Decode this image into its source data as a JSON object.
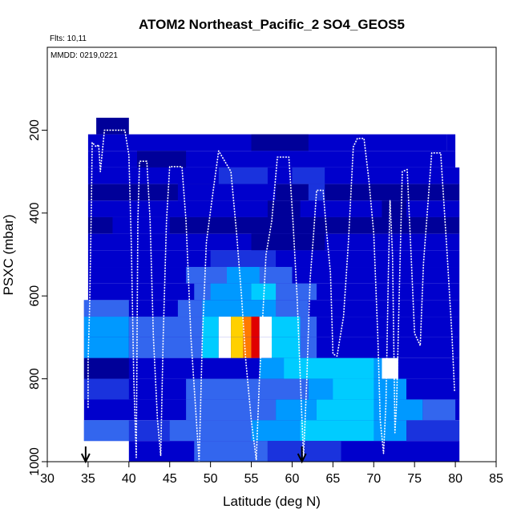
{
  "chart_data": {
    "type": "heatmap",
    "title": "ATOM2 Northeast_Pacific_2 SO4_GEOS5",
    "subtitle_flights": "Flts: 10,11",
    "subtitle_dates": "MMDD: 0219,0221",
    "xlabel": "Latitude (deg N)",
    "ylabel": "PSXC (mbar)",
    "xlim": [
      30,
      85
    ],
    "ylim": [
      1000,
      0
    ],
    "x_ticks": [
      "30",
      "35",
      "40",
      "45",
      "50",
      "55",
      "60",
      "65",
      "70",
      "75",
      "80",
      "85"
    ],
    "y_ticks": [
      "200",
      "400",
      "600",
      "800",
      "1000"
    ],
    "colormap": [
      "#000099",
      "#0000cc",
      "#1a33dd",
      "#3366ee",
      "#0099ff",
      "#00ccff",
      "#ffffff",
      "#ffd000",
      "#ff7a00",
      "#e00000"
    ],
    "arrow_latitudes": [
      34.7,
      61.2
    ],
    "grid": false,
    "legend": "none",
    "heatmap_rows": [
      {
        "p_top": 170,
        "p_bot": 210,
        "cells": [
          {
            "x0": 36,
            "x1": 40,
            "c": 0
          }
        ]
      },
      {
        "p_top": 210,
        "p_bot": 250,
        "cells": [
          {
            "x0": 35,
            "x1": 79,
            "c": 1
          },
          {
            "x0": 55,
            "x1": 62,
            "c": 0
          },
          {
            "x0": 79,
            "x1": 80,
            "c": 1
          }
        ]
      },
      {
        "p_top": 250,
        "p_bot": 290,
        "cells": [
          {
            "x0": 35,
            "x1": 80,
            "c": 1
          },
          {
            "x0": 41,
            "x1": 47,
            "c": 0
          }
        ]
      },
      {
        "p_top": 290,
        "p_bot": 330,
        "cells": [
          {
            "x0": 35,
            "x1": 80.5,
            "c": 1
          },
          {
            "x0": 51,
            "x1": 57,
            "c": 2
          },
          {
            "x0": 60,
            "x1": 64,
            "c": 2
          }
        ]
      },
      {
        "p_top": 330,
        "p_bot": 370,
        "cells": [
          {
            "x0": 35,
            "x1": 80.5,
            "c": 0
          },
          {
            "x0": 46,
            "x1": 58,
            "c": 1
          },
          {
            "x0": 62,
            "x1": 64,
            "c": 2
          }
        ]
      },
      {
        "p_top": 370,
        "p_bot": 410,
        "cells": [
          {
            "x0": 35,
            "x1": 80.5,
            "c": 1
          },
          {
            "x0": 57,
            "x1": 61,
            "c": 0
          },
          {
            "x0": 71,
            "x1": 74,
            "c": 0
          }
        ]
      },
      {
        "p_top": 410,
        "p_bot": 450,
        "cells": [
          {
            "x0": 35,
            "x1": 80.5,
            "c": 0
          },
          {
            "x0": 38,
            "x1": 45,
            "c": 1
          }
        ]
      },
      {
        "p_top": 450,
        "p_bot": 490,
        "cells": [
          {
            "x0": 35,
            "x1": 80.5,
            "c": 1
          },
          {
            "x0": 55,
            "x1": 64,
            "c": 0
          }
        ]
      },
      {
        "p_top": 490,
        "p_bot": 530,
        "cells": [
          {
            "x0": 35,
            "x1": 80.5,
            "c": 1
          },
          {
            "x0": 50,
            "x1": 58,
            "c": 2
          }
        ]
      },
      {
        "p_top": 530,
        "p_bot": 570,
        "cells": [
          {
            "x0": 35,
            "x1": 80.5,
            "c": 1
          },
          {
            "x0": 47,
            "x1": 60,
            "c": 3
          },
          {
            "x0": 52,
            "x1": 56,
            "c": 4
          }
        ]
      },
      {
        "p_top": 570,
        "p_bot": 610,
        "cells": [
          {
            "x0": 35,
            "x1": 80.5,
            "c": 1
          },
          {
            "x0": 48,
            "x1": 63,
            "c": 3
          },
          {
            "x0": 50,
            "x1": 55,
            "c": 4
          },
          {
            "x0": 55,
            "x1": 58,
            "c": 5
          }
        ]
      },
      {
        "p_top": 610,
        "p_bot": 650,
        "cells": [
          {
            "x0": 34.5,
            "x1": 80.5,
            "c": 1
          },
          {
            "x0": 34.5,
            "x1": 40,
            "c": 3
          },
          {
            "x0": 46,
            "x1": 62,
            "c": 3
          },
          {
            "x0": 49,
            "x1": 58,
            "c": 4
          }
        ]
      },
      {
        "p_top": 650,
        "p_bot": 700,
        "cells": [
          {
            "x0": 34.5,
            "x1": 80.5,
            "c": 1
          },
          {
            "x0": 34.5,
            "x1": 40,
            "c": 4
          },
          {
            "x0": 40,
            "x1": 49,
            "c": 3
          },
          {
            "x0": 49,
            "x1": 51,
            "c": 5
          },
          {
            "x0": 51,
            "x1": 52.5,
            "c": 6
          },
          {
            "x0": 52.5,
            "x1": 54,
            "c": 7
          },
          {
            "x0": 54,
            "x1": 55,
            "c": 8
          },
          {
            "x0": 55,
            "x1": 56,
            "c": 9
          },
          {
            "x0": 56,
            "x1": 57.5,
            "c": 6
          },
          {
            "x0": 57.5,
            "x1": 61,
            "c": 5
          },
          {
            "x0": 61,
            "x1": 63,
            "c": 3
          }
        ]
      },
      {
        "p_top": 700,
        "p_bot": 750,
        "cells": [
          {
            "x0": 34.5,
            "x1": 80.5,
            "c": 1
          },
          {
            "x0": 34.5,
            "x1": 40,
            "c": 4
          },
          {
            "x0": 40,
            "x1": 49,
            "c": 3
          },
          {
            "x0": 49,
            "x1": 51,
            "c": 5
          },
          {
            "x0": 51,
            "x1": 52.5,
            "c": 6
          },
          {
            "x0": 52.5,
            "x1": 54,
            "c": 7
          },
          {
            "x0": 54,
            "x1": 55,
            "c": 8
          },
          {
            "x0": 55,
            "x1": 56,
            "c": 9
          },
          {
            "x0": 56,
            "x1": 57.5,
            "c": 6
          },
          {
            "x0": 57.5,
            "x1": 61,
            "c": 5
          },
          {
            "x0": 61,
            "x1": 63,
            "c": 3
          }
        ]
      },
      {
        "p_top": 750,
        "p_bot": 800,
        "cells": [
          {
            "x0": 34.5,
            "x1": 80.5,
            "c": 1
          },
          {
            "x0": 34.5,
            "x1": 40,
            "c": 0
          },
          {
            "x0": 56,
            "x1": 73,
            "c": 4
          },
          {
            "x0": 59,
            "x1": 70,
            "c": 5
          },
          {
            "x0": 71,
            "x1": 73,
            "c": 6
          }
        ]
      },
      {
        "p_top": 800,
        "p_bot": 850,
        "cells": [
          {
            "x0": 34.5,
            "x1": 80.5,
            "c": 1
          },
          {
            "x0": 34.5,
            "x1": 40,
            "c": 2
          },
          {
            "x0": 47,
            "x1": 62,
            "c": 3
          },
          {
            "x0": 62,
            "x1": 74,
            "c": 4
          },
          {
            "x0": 65,
            "x1": 70,
            "c": 5
          }
        ]
      },
      {
        "p_top": 850,
        "p_bot": 900,
        "cells": [
          {
            "x0": 34.5,
            "x1": 80.5,
            "c": 1
          },
          {
            "x0": 47,
            "x1": 58,
            "c": 3
          },
          {
            "x0": 58,
            "x1": 76,
            "c": 4
          },
          {
            "x0": 63,
            "x1": 70,
            "c": 5
          },
          {
            "x0": 76,
            "x1": 80,
            "c": 3
          }
        ]
      },
      {
        "p_top": 900,
        "p_bot": 950,
        "cells": [
          {
            "x0": 34.5,
            "x1": 80.5,
            "c": 2
          },
          {
            "x0": 34.5,
            "x1": 40,
            "c": 3
          },
          {
            "x0": 45,
            "x1": 55,
            "c": 3
          },
          {
            "x0": 55,
            "x1": 74,
            "c": 4
          },
          {
            "x0": 61,
            "x1": 70,
            "c": 5
          }
        ]
      },
      {
        "p_top": 950,
        "p_bot": 1000,
        "cells": [
          {
            "x0": 40,
            "x1": 80.5,
            "c": 1
          },
          {
            "x0": 48,
            "x1": 57,
            "c": 3
          },
          {
            "x0": 57,
            "x1": 66,
            "c": 2
          }
        ]
      }
    ],
    "flight_track": [
      [
        35.0,
        870
      ],
      [
        35.0,
        760
      ],
      [
        35.2,
        620
      ],
      [
        35.4,
        380
      ],
      [
        35.5,
        230
      ],
      [
        36.0,
        240
      ],
      [
        36.3,
        235
      ],
      [
        36.5,
        300
      ],
      [
        37.0,
        200
      ],
      [
        39.5,
        200
      ],
      [
        40.0,
        260
      ],
      [
        40.3,
        480
      ],
      [
        40.6,
        800
      ],
      [
        40.9,
        990
      ],
      [
        41.0,
        700
      ],
      [
        41.1,
        420
      ],
      [
        41.3,
        275
      ],
      [
        42.2,
        275
      ],
      [
        42.6,
        420
      ],
      [
        43.0,
        700
      ],
      [
        43.5,
        900
      ],
      [
        43.9,
        985
      ],
      [
        44.2,
        700
      ],
      [
        44.6,
        420
      ],
      [
        45.0,
        288
      ],
      [
        46.5,
        288
      ],
      [
        47.0,
        420
      ],
      [
        47.6,
        700
      ],
      [
        48.2,
        880
      ],
      [
        48.6,
        1000
      ],
      [
        49.0,
        700
      ],
      [
        49.5,
        470
      ],
      [
        50.3,
        350
      ],
      [
        51.0,
        250
      ],
      [
        52.5,
        300
      ],
      [
        53.2,
        450
      ],
      [
        53.8,
        600
      ],
      [
        54.3,
        750
      ],
      [
        55.0,
        900
      ],
      [
        55.6,
        995
      ],
      [
        56.0,
        800
      ],
      [
        56.4,
        650
      ],
      [
        56.8,
        500
      ],
      [
        57.5,
        420
      ],
      [
        58.2,
        265
      ],
      [
        59.6,
        265
      ],
      [
        60.1,
        420
      ],
      [
        60.6,
        600
      ],
      [
        61.1,
        850
      ],
      [
        61.4,
        990
      ],
      [
        61.8,
        800
      ],
      [
        62.2,
        560
      ],
      [
        62.6,
        460
      ],
      [
        63.0,
        345
      ],
      [
        63.8,
        345
      ],
      [
        64.2,
        440
      ],
      [
        64.7,
        545
      ],
      [
        65.0,
        740
      ],
      [
        65.5,
        745
      ],
      [
        66.3,
        650
      ],
      [
        66.9,
        470
      ],
      [
        67.5,
        240
      ],
      [
        68.0,
        220
      ],
      [
        68.8,
        220
      ],
      [
        69.4,
        320
      ],
      [
        70.0,
        450
      ],
      [
        70.5,
        700
      ],
      [
        70.8,
        900
      ],
      [
        71.2,
        980
      ],
      [
        71.5,
        860
      ],
      [
        71.8,
        540
      ],
      [
        72.0,
        370
      ],
      [
        72.3,
        500
      ],
      [
        72.5,
        770
      ],
      [
        72.6,
        930
      ],
      [
        72.8,
        860
      ],
      [
        73.1,
        620
      ],
      [
        73.5,
        300
      ],
      [
        74.1,
        295
      ],
      [
        74.6,
        510
      ],
      [
        75.0,
        690
      ],
      [
        75.7,
        720
      ],
      [
        76.1,
        520
      ],
      [
        77.1,
        255
      ],
      [
        78.2,
        255
      ],
      [
        79.0,
        500
      ],
      [
        79.6,
        700
      ],
      [
        79.9,
        830
      ]
    ]
  }
}
